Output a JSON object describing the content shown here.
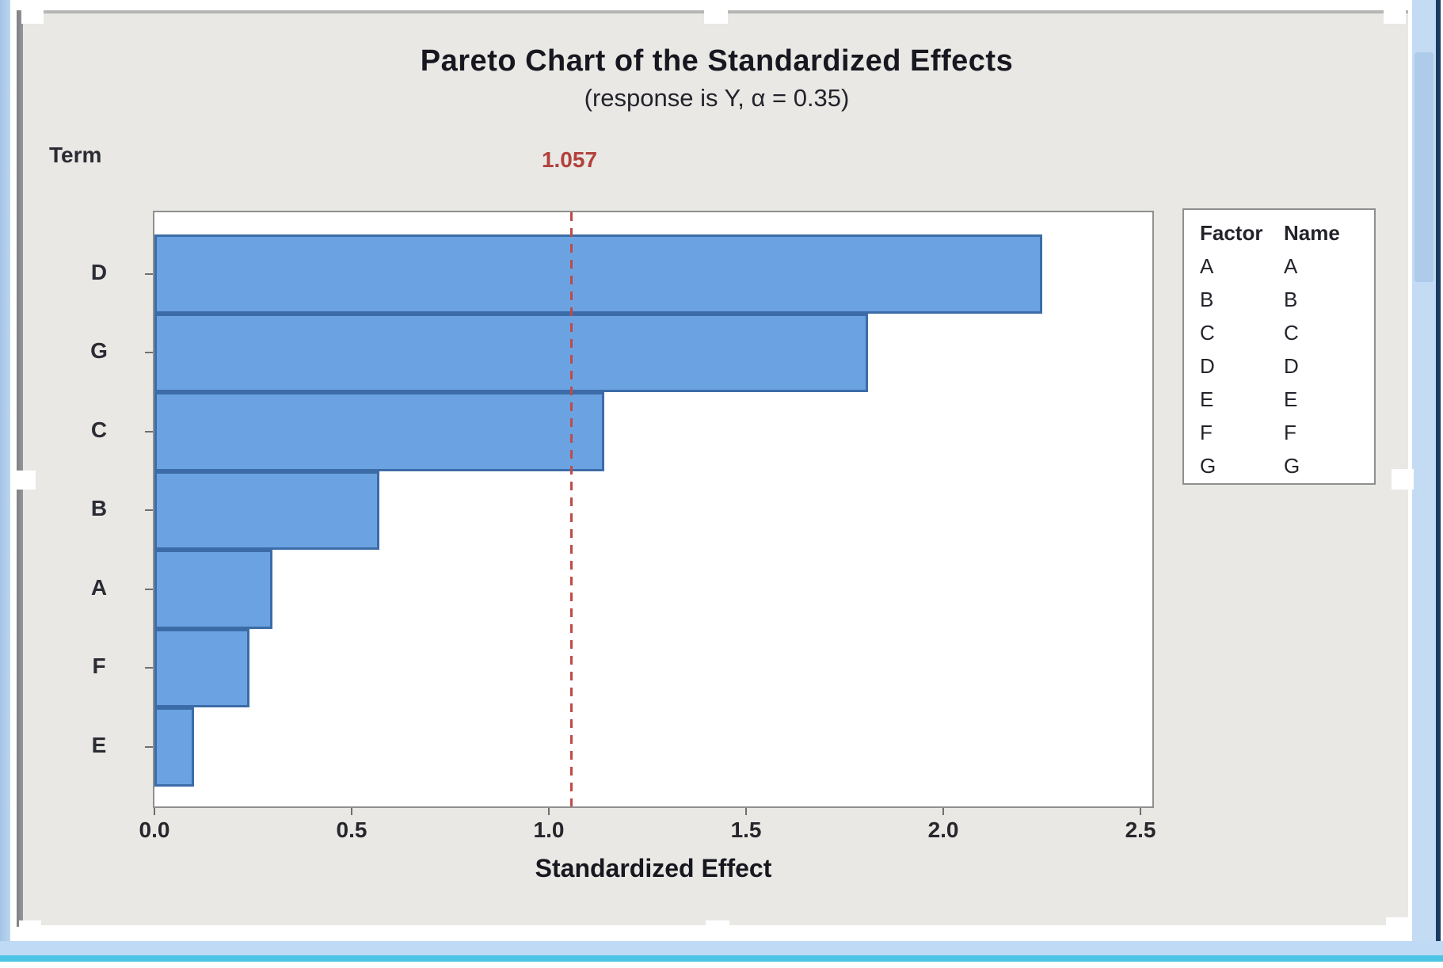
{
  "chart_data": {
    "type": "bar",
    "orientation": "horizontal",
    "title": "Pareto Chart of the Standardized Effects",
    "subtitle": "(response is Y, α = 0.35)",
    "xlabel": "Standardized Effect",
    "ylabel": "Term",
    "categories": [
      "D",
      "G",
      "C",
      "B",
      "A",
      "F",
      "E"
    ],
    "values": [
      2.25,
      1.81,
      1.14,
      0.57,
      0.3,
      0.24,
      0.1
    ],
    "xlim": [
      0,
      2.53
    ],
    "x_tick_values": [
      0.0,
      0.5,
      1.0,
      1.5,
      2.0,
      2.5
    ],
    "x_tick_labels": [
      "0.0",
      "0.5",
      "1.0",
      "1.5",
      "2.0",
      "2.5"
    ],
    "grid": false,
    "reference_line": {
      "value": 1.057,
      "label": "1.057"
    },
    "legend": {
      "position": "right",
      "headers": [
        "Factor",
        "Name"
      ],
      "rows": [
        [
          "A",
          "A"
        ],
        [
          "B",
          "B"
        ],
        [
          "C",
          "C"
        ],
        [
          "D",
          "D"
        ],
        [
          "E",
          "E"
        ],
        [
          "F",
          "F"
        ],
        [
          "G",
          "G"
        ]
      ]
    },
    "colors": {
      "bar_fill": "#6ba3e2",
      "bar_border": "#3c6ca8",
      "reference": "#bf4a47",
      "canvas_bg": "#e9e8e5",
      "plot_bg": "#ffffff"
    }
  }
}
